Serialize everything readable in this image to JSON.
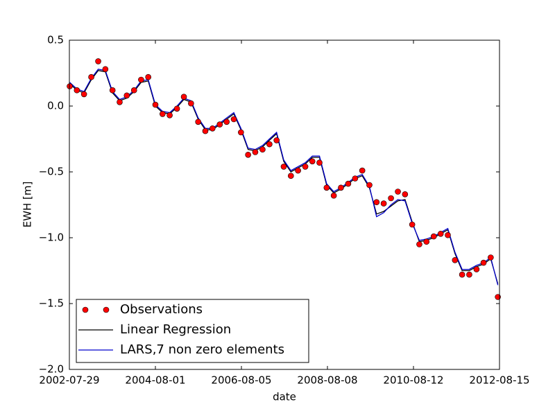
{
  "chart_data": {
    "type": "line",
    "xlabel": "date",
    "ylabel": "EWH [m]",
    "xlim": [
      "2002-07-29",
      "2012-08-15"
    ],
    "xticks": [
      "2002-07-29",
      "2004-08-01",
      "2006-08-05",
      "2008-08-08",
      "2010-08-12",
      "2012-08-15"
    ],
    "ylim": [
      -2.0,
      0.5
    ],
    "yticks": [
      0.5,
      {
        "value": 0.0,
        "label": "0.0"
      },
      {
        "value": -0.5,
        "label": "−0.5"
      },
      {
        "value": -1.0,
        "label": "−1.0"
      },
      {
        "value": -1.5,
        "label": "−1.5"
      },
      {
        "value": -2.0,
        "label": "−2.0"
      }
    ],
    "legend": "lower left",
    "x": [
      "2002-08-01",
      "2002-10-01",
      "2002-12-01",
      "2003-02-01",
      "2003-04-01",
      "2003-06-01",
      "2003-08-01",
      "2003-10-01",
      "2003-12-01",
      "2004-02-01",
      "2004-04-01",
      "2004-06-01",
      "2004-08-01",
      "2004-10-01",
      "2004-12-01",
      "2005-02-01",
      "2005-04-01",
      "2005-06-01",
      "2005-08-01",
      "2005-10-01",
      "2005-12-01",
      "2006-02-01",
      "2006-04-01",
      "2006-06-01",
      "2006-08-01",
      "2006-10-01",
      "2006-12-01",
      "2007-02-01",
      "2007-04-01",
      "2007-06-01",
      "2007-08-01",
      "2007-10-01",
      "2007-12-01",
      "2008-02-01",
      "2008-04-01",
      "2008-06-01",
      "2008-08-01",
      "2008-10-01",
      "2008-12-01",
      "2009-02-01",
      "2009-04-01",
      "2009-06-01",
      "2009-08-01",
      "2009-10-01",
      "2009-12-01",
      "2010-02-01",
      "2010-04-01",
      "2010-06-01",
      "2010-08-01",
      "2010-10-01",
      "2010-12-01",
      "2011-02-01",
      "2011-04-01",
      "2011-06-01",
      "2011-08-01",
      "2011-10-01",
      "2011-12-01",
      "2012-02-01",
      "2012-04-01",
      "2012-06-01",
      "2012-08-01"
    ],
    "series": [
      {
        "name": "Observations",
        "color": "#ff0000",
        "mode": "markers",
        "values": [
          0.15,
          0.12,
          0.09,
          0.22,
          0.34,
          0.28,
          0.12,
          0.03,
          0.08,
          0.12,
          0.2,
          0.22,
          0.01,
          -0.06,
          -0.07,
          -0.02,
          0.07,
          0.02,
          -0.12,
          -0.19,
          -0.17,
          -0.14,
          -0.12,
          -0.1,
          -0.2,
          -0.37,
          -0.35,
          -0.33,
          -0.29,
          -0.26,
          -0.46,
          -0.53,
          -0.49,
          -0.46,
          -0.42,
          -0.43,
          -0.62,
          -0.68,
          -0.62,
          -0.59,
          -0.55,
          -0.49,
          -0.6,
          -0.73,
          -0.74,
          -0.7,
          -0.65,
          -0.67,
          -0.9,
          -1.05,
          -1.03,
          -0.99,
          -0.97,
          -0.98,
          -1.17,
          -1.28,
          -1.28,
          -1.24,
          -1.19,
          -1.15,
          -1.45
        ]
      },
      {
        "name": "Linear Regression",
        "color": "#000000",
        "mode": "lines",
        "values": [
          0.17,
          0.12,
          0.1,
          0.2,
          0.27,
          0.26,
          0.1,
          0.04,
          0.06,
          0.11,
          0.18,
          0.19,
          0.0,
          -0.05,
          -0.06,
          -0.01,
          0.05,
          0.03,
          -0.1,
          -0.18,
          -0.18,
          -0.14,
          -0.1,
          -0.06,
          -0.18,
          -0.33,
          -0.34,
          -0.31,
          -0.26,
          -0.21,
          -0.42,
          -0.5,
          -0.47,
          -0.44,
          -0.39,
          -0.39,
          -0.6,
          -0.66,
          -0.63,
          -0.59,
          -0.55,
          -0.53,
          -0.62,
          -0.82,
          -0.8,
          -0.76,
          -0.72,
          -0.71,
          -0.88,
          -1.03,
          -1.02,
          -1.0,
          -0.97,
          -0.94,
          -1.12,
          -1.25,
          -1.25,
          -1.22,
          -1.2,
          -1.16,
          -1.35
        ]
      },
      {
        "name": "LARS,7 non zero elements",
        "color": "#0000cc",
        "mode": "lines",
        "values": [
          0.18,
          0.13,
          0.11,
          0.21,
          0.28,
          0.27,
          0.11,
          0.05,
          0.07,
          0.12,
          0.19,
          0.2,
          0.01,
          -0.04,
          -0.05,
          0.0,
          0.06,
          0.04,
          -0.09,
          -0.17,
          -0.17,
          -0.13,
          -0.09,
          -0.05,
          -0.17,
          -0.32,
          -0.33,
          -0.3,
          -0.25,
          -0.2,
          -0.41,
          -0.49,
          -0.46,
          -0.43,
          -0.38,
          -0.38,
          -0.59,
          -0.65,
          -0.62,
          -0.58,
          -0.54,
          -0.52,
          -0.61,
          -0.84,
          -0.81,
          -0.75,
          -0.71,
          -0.72,
          -0.89,
          -1.02,
          -1.01,
          -0.99,
          -0.96,
          -0.93,
          -1.11,
          -1.24,
          -1.24,
          -1.21,
          -1.19,
          -1.15,
          -1.36
        ]
      }
    ]
  }
}
